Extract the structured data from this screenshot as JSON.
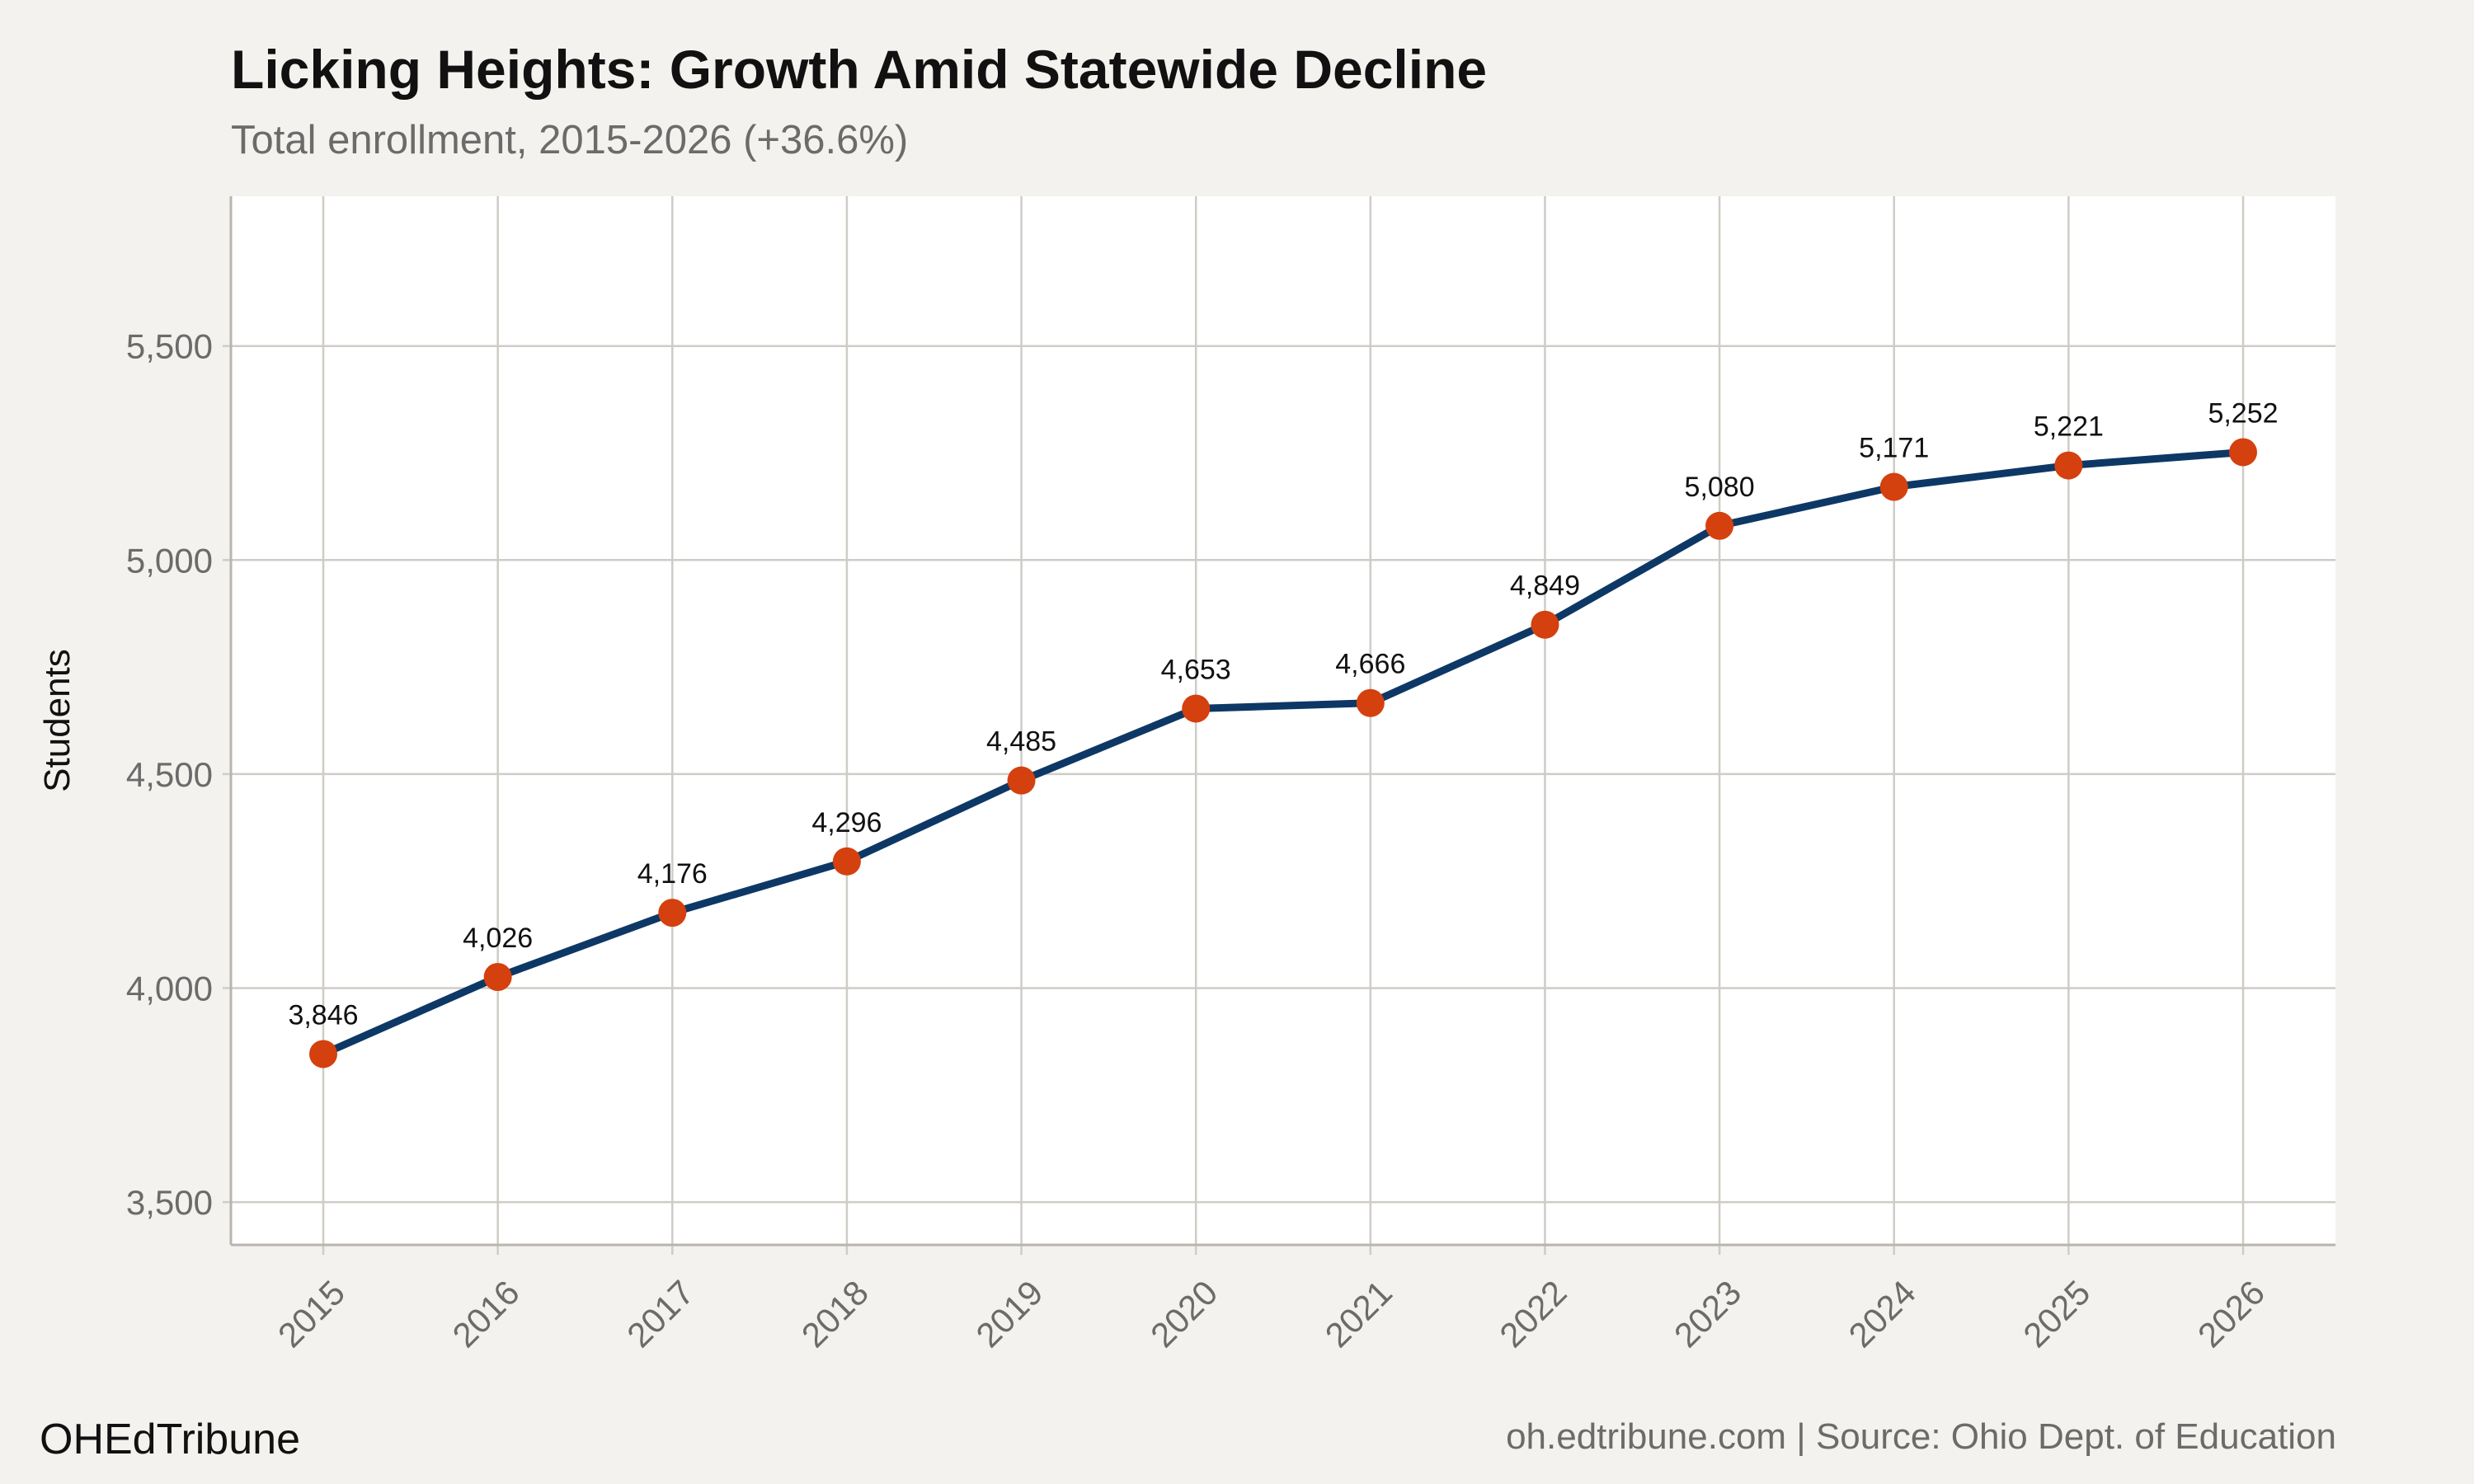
{
  "header": {
    "title": "Licking Heights: Growth Amid Statewide Decline",
    "subtitle": "Total enrollment, 2015-2026 (+36.6%)"
  },
  "footer": {
    "brand": "OHEdTribune",
    "source": "oh.edtribune.com | Source: Ohio Dept. of Education"
  },
  "colors": {
    "background": "#f4f2ee",
    "plot_background": "#ffffff",
    "grid": "#cfccc6",
    "line": "#0d3866",
    "marker": "#d4400e"
  },
  "chart_data": {
    "type": "line",
    "title": "Licking Heights: Growth Amid Statewide Decline",
    "subtitle": "Total enrollment, 2015-2026 (+36.6%)",
    "xlabel": "",
    "ylabel": "Students",
    "x": [
      "2015",
      "2016",
      "2017",
      "2018",
      "2019",
      "2020",
      "2021",
      "2022",
      "2023",
      "2024",
      "2025",
      "2026"
    ],
    "series": [
      {
        "values": [
          3846,
          4026,
          4176,
          4296,
          4485,
          4653,
          4666,
          4849,
          5080,
          5171,
          5221,
          5252
        ],
        "labels": [
          "3,846",
          "4,026",
          "4,176",
          "4,296",
          "4,485",
          "4,653",
          "4,666",
          "4,849",
          "5,080",
          "5,171",
          "5,221",
          "5,252"
        ]
      }
    ],
    "ylim": [
      3400,
      5850
    ],
    "yticks": [
      3500,
      4000,
      4500,
      5000,
      5500
    ],
    "ytick_labels": [
      "3,500",
      "4,000",
      "4,500",
      "5,000",
      "5,500"
    ],
    "grid": true,
    "legend": "none"
  }
}
